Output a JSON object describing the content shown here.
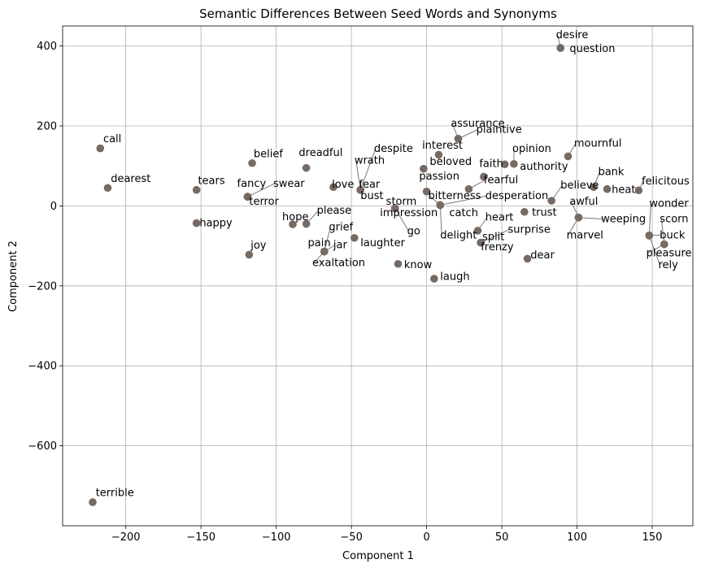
{
  "chart_data": {
    "type": "scatter",
    "title": "Semantic Differences Between Seed Words and Synonyms",
    "xlabel": "Component 1",
    "ylabel": "Component 2",
    "xlim": [
      -242,
      177
    ],
    "ylim": [
      -800,
      450
    ],
    "xticks": [
      -200,
      -150,
      -100,
      -50,
      0,
      50,
      100,
      150
    ],
    "yticks": [
      -600,
      -400,
      -200,
      0,
      200,
      400
    ],
    "xtick_labels": [
      "−200",
      "−150",
      "−100",
      "−50",
      "0",
      "50",
      "100",
      "150"
    ],
    "ytick_labels": [
      "−600",
      "−400",
      "−200",
      "0",
      "200",
      "400"
    ],
    "grid": true,
    "point_color": "#776a63",
    "points": [
      {
        "label": "desire",
        "x": 89,
        "y": 395,
        "lx": 86,
        "ly": 420,
        "leader": true
      },
      {
        "label": "question",
        "x": 89,
        "y": 395,
        "lx": 95,
        "ly": 385,
        "leader": false
      },
      {
        "label": "assurance",
        "x": 21,
        "y": 168,
        "lx": 16,
        "ly": 198,
        "leader": true
      },
      {
        "label": "plaintive",
        "x": 21,
        "y": 168,
        "lx": 33,
        "ly": 183,
        "leader": true
      },
      {
        "label": "interest",
        "x": 8,
        "y": 128,
        "lx": -3,
        "ly": 143,
        "leader": false
      },
      {
        "label": "opinion",
        "x": 58,
        "y": 105,
        "lx": 57,
        "ly": 135,
        "leader": true
      },
      {
        "label": "authority",
        "x": 52,
        "y": 104,
        "lx": 62,
        "ly": 90,
        "leader": false
      },
      {
        "label": "mournful",
        "x": 94,
        "y": 124,
        "lx": 98,
        "ly": 148,
        "leader": true
      },
      {
        "label": "call",
        "x": -217,
        "y": 144,
        "lx": -215,
        "ly": 159,
        "leader": false
      },
      {
        "label": "belief",
        "x": -116,
        "y": 107,
        "lx": -115,
        "ly": 122,
        "leader": false
      },
      {
        "label": "dreadful",
        "x": -80,
        "y": 95,
        "lx": -85,
        "ly": 125,
        "leader": false
      },
      {
        "label": "despite",
        "x": -44,
        "y": 40,
        "lx": -35,
        "ly": 135,
        "leader": true
      },
      {
        "label": "beloved",
        "x": -2,
        "y": 93,
        "lx": 2,
        "ly": 102,
        "leader": false
      },
      {
        "label": "faith",
        "x": 38,
        "y": 73,
        "lx": 35,
        "ly": 97,
        "leader": false
      },
      {
        "label": "wrath",
        "x": -44,
        "y": 40,
        "lx": -48,
        "ly": 105,
        "leader": true
      },
      {
        "label": "bank",
        "x": 111,
        "y": 47,
        "lx": 114,
        "ly": 77,
        "leader": true
      },
      {
        "label": "felicitous",
        "x": 141,
        "y": 39,
        "lx": 143,
        "ly": 54,
        "leader": true
      },
      {
        "label": "passion",
        "x": 0,
        "y": 36,
        "lx": -5,
        "ly": 66,
        "leader": false
      },
      {
        "label": "fearful",
        "x": 28,
        "y": 42,
        "lx": 38,
        "ly": 57,
        "leader": true
      },
      {
        "label": "dearest",
        "x": -212,
        "y": 45,
        "lx": -210,
        "ly": 60,
        "leader": false
      },
      {
        "label": "tears",
        "x": -153,
        "y": 40,
        "lx": -152,
        "ly": 55,
        "leader": false
      },
      {
        "label": "fancy",
        "x": -119,
        "y": 23,
        "lx": -126,
        "ly": 48,
        "leader": false
      },
      {
        "label": "swear",
        "x": -119,
        "y": 23,
        "lx": -102,
        "ly": 48,
        "leader": true
      },
      {
        "label": "love",
        "x": -62,
        "y": 47,
        "lx": -63,
        "ly": 46,
        "leader": false
      },
      {
        "label": "fear",
        "x": -44,
        "y": 40,
        "lx": -45,
        "ly": 46,
        "leader": false
      },
      {
        "label": "believe",
        "x": 83,
        "y": 13,
        "lx": 89,
        "ly": 43,
        "leader": true
      },
      {
        "label": "heat",
        "x": 120,
        "y": 42,
        "lx": 123,
        "ly": 32,
        "leader": false
      },
      {
        "label": "bust",
        "x": -44,
        "y": 40,
        "lx": -44,
        "ly": 17,
        "leader": false
      },
      {
        "label": "terror",
        "x": -119,
        "y": 23,
        "lx": -118,
        "ly": 3,
        "leader": false
      },
      {
        "label": "storm",
        "x": -21,
        "y": -6,
        "lx": -27,
        "ly": 3,
        "leader": false
      },
      {
        "label": "desperation",
        "x": 9,
        "y": 2,
        "lx": 39,
        "ly": 17,
        "leader": true
      },
      {
        "label": "bitterness",
        "x": 9,
        "y": 2,
        "lx": 1,
        "ly": 17,
        "leader": true
      },
      {
        "label": "awful",
        "x": 101,
        "y": -29,
        "lx": 95,
        "ly": 3,
        "leader": true
      },
      {
        "label": "wonder",
        "x": 148,
        "y": -74,
        "lx": 148,
        "ly": -2,
        "leader": true
      },
      {
        "label": "trust",
        "x": 65,
        "y": -15,
        "lx": 70,
        "ly": -25,
        "leader": false
      },
      {
        "label": "please",
        "x": -80,
        "y": -45,
        "lx": -73,
        "ly": -20,
        "leader": true
      },
      {
        "label": "hope",
        "x": -89,
        "y": -46,
        "lx": -96,
        "ly": -36,
        "leader": false
      },
      {
        "label": "impression",
        "x": -21,
        "y": -6,
        "lx": -31,
        "ly": -26,
        "leader": false
      },
      {
        "label": "catch",
        "x": 9,
        "y": 2,
        "lx": 15,
        "ly": -26,
        "leader": false
      },
      {
        "label": "heart",
        "x": 34,
        "y": -62,
        "lx": 39,
        "ly": -37,
        "leader": true
      },
      {
        "label": "happy",
        "x": -153,
        "y": -43,
        "lx": -151,
        "ly": -51,
        "leader": false
      },
      {
        "label": "weeping",
        "x": 101,
        "y": -29,
        "lx": 116,
        "ly": -41,
        "leader": true
      },
      {
        "label": "scorn",
        "x": 158,
        "y": -96,
        "lx": 155,
        "ly": -41,
        "leader": true
      },
      {
        "label": "grief",
        "x": -68,
        "y": -114,
        "lx": -65,
        "ly": -61,
        "leader": true
      },
      {
        "label": "go",
        "x": -21,
        "y": -6,
        "lx": -13,
        "ly": -71,
        "leader": true
      },
      {
        "label": "surprise",
        "x": 36,
        "y": -92,
        "lx": 54,
        "ly": -67,
        "leader": true
      },
      {
        "label": "delight",
        "x": 9,
        "y": 2,
        "lx": 9,
        "ly": -81,
        "leader": true
      },
      {
        "label": "split",
        "x": 36,
        "y": -92,
        "lx": 37,
        "ly": -86,
        "leader": false
      },
      {
        "label": "marvel",
        "x": 101,
        "y": -29,
        "lx": 93,
        "ly": -81,
        "leader": true
      },
      {
        "label": "buck",
        "x": 148,
        "y": -74,
        "lx": 155,
        "ly": -81,
        "leader": true
      },
      {
        "label": "pain",
        "x": -68,
        "y": -114,
        "lx": -79,
        "ly": -101,
        "leader": false
      },
      {
        "label": "laughter",
        "x": -48,
        "y": -80,
        "lx": -44,
        "ly": -101,
        "leader": false
      },
      {
        "label": "jar",
        "x": -68,
        "y": -114,
        "lx": -62,
        "ly": -106,
        "leader": true
      },
      {
        "label": "frenzy",
        "x": 36,
        "y": -92,
        "lx": 36,
        "ly": -111,
        "leader": false
      },
      {
        "label": "joy",
        "x": -118,
        "y": -122,
        "lx": -117,
        "ly": -107,
        "leader": false
      },
      {
        "label": "pleasure",
        "x": 158,
        "y": -96,
        "lx": 146,
        "ly": -126,
        "leader": true
      },
      {
        "label": "dear",
        "x": 67,
        "y": -132,
        "lx": 69,
        "ly": -131,
        "leader": false
      },
      {
        "label": "rely",
        "x": 148,
        "y": -74,
        "lx": 154,
        "ly": -156,
        "leader": true
      },
      {
        "label": "exaltation",
        "x": -68,
        "y": -114,
        "lx": -76,
        "ly": -151,
        "leader": true
      },
      {
        "label": "know",
        "x": -19,
        "y": -145,
        "lx": -15,
        "ly": -156,
        "leader": false
      },
      {
        "label": "laugh",
        "x": 5,
        "y": -182,
        "lx": 9,
        "ly": -185,
        "leader": false
      },
      {
        "label": "terrible",
        "x": -222,
        "y": -741,
        "lx": -220,
        "ly": -726,
        "leader": false
      }
    ]
  }
}
